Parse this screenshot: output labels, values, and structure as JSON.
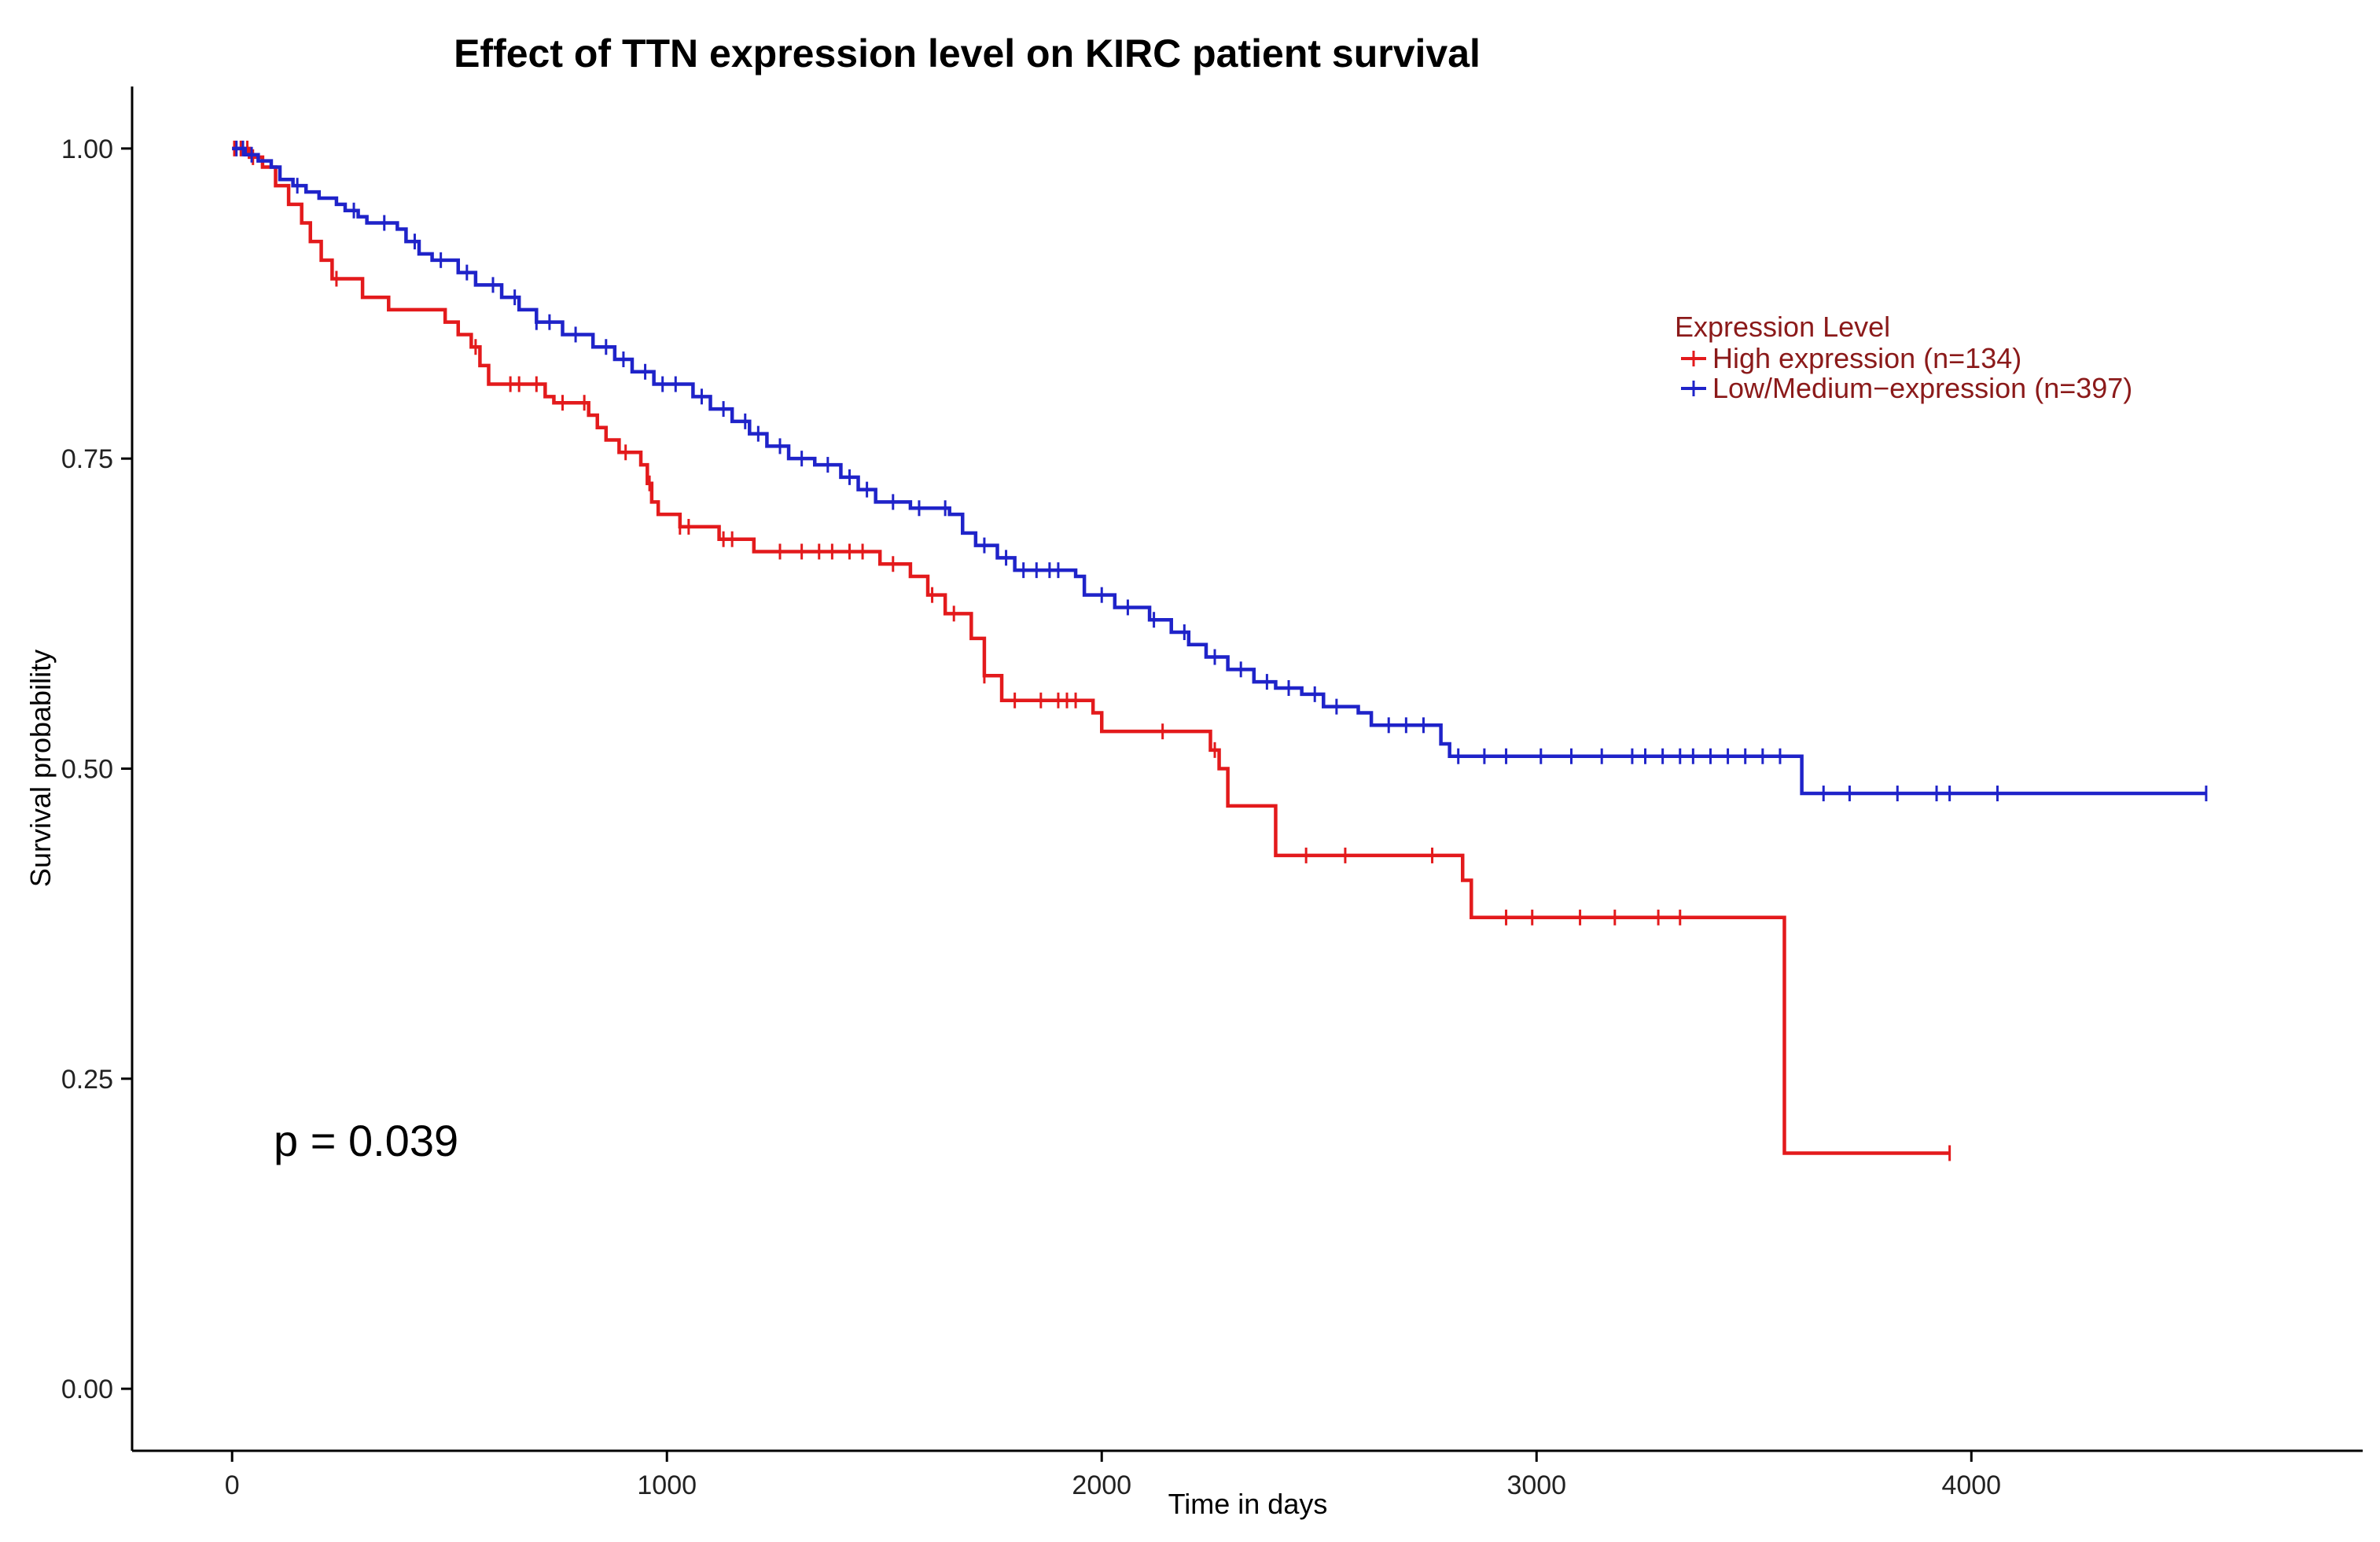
{
  "chart_data": {
    "type": "line",
    "subtype": "kaplan-meier",
    "title": "Effect of TTN expression level on KIRC patient survival",
    "xlabel": "Time in days",
    "ylabel": "Survival probability",
    "xlim": [
      -230,
      4900
    ],
    "ylim": [
      -0.05,
      1.05
    ],
    "x_ticks": [
      0,
      1000,
      2000,
      3000,
      4000
    ],
    "x_tick_labels": [
      "0",
      "1000",
      "2000",
      "3000",
      "4000"
    ],
    "y_ticks": [
      0,
      0.25,
      0.5,
      0.75,
      1.0
    ],
    "y_tick_labels": [
      "0.00",
      "0.25",
      "0.50",
      "0.75",
      "1.00"
    ],
    "grid": false,
    "legend_position": "top-right",
    "annotation": "p = 0.039",
    "legend": {
      "title": "Expression Level",
      "title_color": "#8b1a1a",
      "text_color": "#8b1a1a"
    },
    "series": [
      {
        "name": "High expression (n=134)",
        "color": "#e31a1c",
        "steps": [
          [
            0,
            1.0
          ],
          [
            40,
            0.993
          ],
          [
            70,
            0.985
          ],
          [
            100,
            0.97
          ],
          [
            130,
            0.955
          ],
          [
            160,
            0.94
          ],
          [
            180,
            0.925
          ],
          [
            205,
            0.91
          ],
          [
            230,
            0.895
          ],
          [
            270,
            0.895
          ],
          [
            300,
            0.88
          ],
          [
            360,
            0.87
          ],
          [
            460,
            0.87
          ],
          [
            490,
            0.86
          ],
          [
            520,
            0.85
          ],
          [
            550,
            0.84
          ],
          [
            570,
            0.825
          ],
          [
            590,
            0.81
          ],
          [
            680,
            0.81
          ],
          [
            720,
            0.8
          ],
          [
            740,
            0.795
          ],
          [
            800,
            0.795
          ],
          [
            820,
            0.785
          ],
          [
            840,
            0.775
          ],
          [
            860,
            0.765
          ],
          [
            890,
            0.755
          ],
          [
            940,
            0.745
          ],
          [
            955,
            0.73
          ],
          [
            965,
            0.715
          ],
          [
            980,
            0.705
          ],
          [
            1030,
            0.695
          ],
          [
            1120,
            0.685
          ],
          [
            1200,
            0.675
          ],
          [
            1490,
            0.665
          ],
          [
            1560,
            0.655
          ],
          [
            1600,
            0.64
          ],
          [
            1640,
            0.625
          ],
          [
            1700,
            0.605
          ],
          [
            1730,
            0.575
          ],
          [
            1770,
            0.555
          ],
          [
            1980,
            0.545
          ],
          [
            2000,
            0.53
          ],
          [
            2250,
            0.515
          ],
          [
            2270,
            0.5
          ],
          [
            2290,
            0.47
          ],
          [
            2400,
            0.43
          ],
          [
            2830,
            0.41
          ],
          [
            2850,
            0.38
          ],
          [
            3570,
            0.19
          ],
          [
            3950,
            0.19
          ]
        ],
        "censored_x": [
          5,
          20,
          35,
          48,
          240,
          560,
          640,
          660,
          700,
          760,
          810,
          905,
          960,
          1030,
          1050,
          1130,
          1150,
          1260,
          1310,
          1350,
          1380,
          1420,
          1450,
          1520,
          1610,
          1660,
          1730,
          1800,
          1860,
          1900,
          1920,
          1940,
          2140,
          2260,
          2470,
          2560,
          2760,
          2930,
          2990,
          3100,
          3180,
          3280,
          3330,
          3950
        ]
      },
      {
        "name": "Low/Medium−expression (n=397)",
        "color": "#1f23c9",
        "steps": [
          [
            0,
            1.0
          ],
          [
            30,
            0.995
          ],
          [
            60,
            0.99
          ],
          [
            90,
            0.985
          ],
          [
            110,
            0.975
          ],
          [
            140,
            0.97
          ],
          [
            170,
            0.965
          ],
          [
            200,
            0.96
          ],
          [
            240,
            0.955
          ],
          [
            260,
            0.95
          ],
          [
            290,
            0.945
          ],
          [
            310,
            0.94
          ],
          [
            380,
            0.935
          ],
          [
            400,
            0.925
          ],
          [
            430,
            0.915
          ],
          [
            460,
            0.91
          ],
          [
            520,
            0.9
          ],
          [
            560,
            0.89
          ],
          [
            620,
            0.88
          ],
          [
            660,
            0.87
          ],
          [
            700,
            0.86
          ],
          [
            760,
            0.85
          ],
          [
            830,
            0.84
          ],
          [
            880,
            0.83
          ],
          [
            920,
            0.82
          ],
          [
            970,
            0.81
          ],
          [
            1060,
            0.8
          ],
          [
            1100,
            0.79
          ],
          [
            1150,
            0.78
          ],
          [
            1190,
            0.77
          ],
          [
            1230,
            0.76
          ],
          [
            1280,
            0.75
          ],
          [
            1340,
            0.745
          ],
          [
            1400,
            0.735
          ],
          [
            1440,
            0.725
          ],
          [
            1480,
            0.715
          ],
          [
            1560,
            0.71
          ],
          [
            1650,
            0.705
          ],
          [
            1680,
            0.69
          ],
          [
            1710,
            0.68
          ],
          [
            1760,
            0.67
          ],
          [
            1800,
            0.66
          ],
          [
            1940,
            0.655
          ],
          [
            1960,
            0.64
          ],
          [
            2030,
            0.63
          ],
          [
            2110,
            0.62
          ],
          [
            2160,
            0.61
          ],
          [
            2200,
            0.6
          ],
          [
            2240,
            0.59
          ],
          [
            2290,
            0.58
          ],
          [
            2350,
            0.57
          ],
          [
            2400,
            0.565
          ],
          [
            2460,
            0.56
          ],
          [
            2510,
            0.55
          ],
          [
            2590,
            0.545
          ],
          [
            2620,
            0.535
          ],
          [
            2780,
            0.52
          ],
          [
            2800,
            0.51
          ],
          [
            3610,
            0.48
          ],
          [
            4540,
            0.48
          ]
        ],
        "censored_x": [
          10,
          25,
          45,
          150,
          280,
          350,
          420,
          480,
          540,
          600,
          650,
          700,
          730,
          790,
          860,
          900,
          950,
          990,
          1020,
          1080,
          1130,
          1180,
          1210,
          1260,
          1310,
          1370,
          1420,
          1460,
          1520,
          1580,
          1640,
          1730,
          1780,
          1820,
          1850,
          1880,
          1900,
          2000,
          2060,
          2120,
          2190,
          2260,
          2320,
          2380,
          2430,
          2490,
          2540,
          2660,
          2700,
          2740,
          2820,
          2880,
          2930,
          3010,
          3080,
          3150,
          3220,
          3250,
          3290,
          3330,
          3360,
          3400,
          3440,
          3480,
          3520,
          3560,
          3660,
          3720,
          3830,
          3920,
          3950,
          4060,
          4540
        ]
      }
    ]
  }
}
